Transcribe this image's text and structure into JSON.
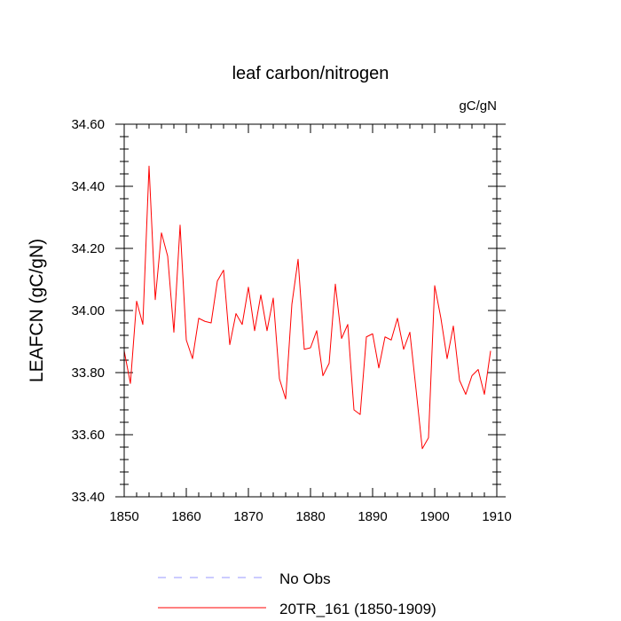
{
  "chart_data": {
    "type": "line",
    "title": "leaf carbon/nitrogen",
    "units": "gC/gN",
    "ylabel": "LEAFCN  (gC/gN)",
    "xlabel": "",
    "xlim": [
      1850,
      1910
    ],
    "ylim": [
      33.4,
      34.6
    ],
    "x_ticks": [
      1850,
      1860,
      1870,
      1880,
      1890,
      1900,
      1910
    ],
    "x_tick_labels": [
      "1850",
      "1860",
      "1870",
      "1880",
      "1890",
      "1900",
      "1910"
    ],
    "y_ticks": [
      33.4,
      33.6,
      33.8,
      34.0,
      34.2,
      34.4,
      34.6
    ],
    "y_tick_labels": [
      "33.40",
      "33.60",
      "33.80",
      "34.00",
      "34.20",
      "34.40",
      "34.60"
    ],
    "x_minor_step": 2,
    "y_minor_step": 0.04,
    "series": [
      {
        "name": "20TR_161 (1850-1909)",
        "color": "#ff0000",
        "style": "solid",
        "x": [
          1850,
          1851,
          1852,
          1853,
          1854,
          1855,
          1856,
          1857,
          1858,
          1859,
          1860,
          1861,
          1862,
          1863,
          1864,
          1865,
          1866,
          1867,
          1868,
          1869,
          1870,
          1871,
          1872,
          1873,
          1874,
          1875,
          1876,
          1877,
          1878,
          1879,
          1880,
          1881,
          1882,
          1883,
          1884,
          1885,
          1886,
          1887,
          1888,
          1889,
          1890,
          1891,
          1892,
          1893,
          1894,
          1895,
          1896,
          1897,
          1898,
          1899,
          1900,
          1901,
          1902,
          1903,
          1904,
          1905,
          1906,
          1907,
          1908,
          1909
        ],
        "values": [
          33.87,
          33.765,
          34.03,
          33.955,
          34.465,
          34.035,
          34.25,
          34.175,
          33.93,
          34.275,
          33.905,
          33.845,
          33.975,
          33.965,
          33.96,
          34.095,
          34.13,
          33.89,
          33.99,
          33.955,
          34.075,
          33.935,
          34.05,
          33.935,
          34.04,
          33.78,
          33.715,
          34.02,
          34.165,
          33.875,
          33.88,
          33.935,
          33.79,
          33.83,
          34.085,
          33.91,
          33.955,
          33.68,
          33.665,
          33.915,
          33.925,
          33.815,
          33.915,
          33.905,
          33.975,
          33.875,
          33.93,
          33.745,
          33.555,
          33.59,
          34.08,
          33.975,
          33.845,
          33.95,
          33.775,
          33.73,
          33.79,
          33.81,
          33.73,
          33.87
        ]
      }
    ],
    "legend": [
      {
        "label": "No Obs",
        "color": "#9999ff",
        "style": "dashed"
      },
      {
        "label": "20TR_161 (1850-1909)",
        "color": "#ff0000",
        "style": "solid"
      }
    ],
    "legend_position": "bottom"
  }
}
